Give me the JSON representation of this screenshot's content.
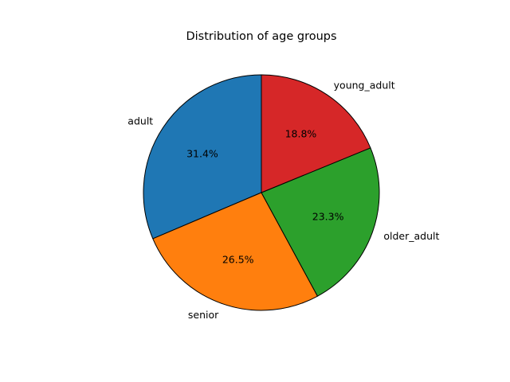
{
  "chart_data": {
    "type": "pie",
    "title": "Distribution of age groups",
    "start_angle_deg": 90,
    "direction": "counterclockwise",
    "edge_color": "#000000",
    "slices": [
      {
        "label": "adult",
        "value": 31.4,
        "pct_text": "31.4%",
        "color": "#1f77b4"
      },
      {
        "label": "senior",
        "value": 26.5,
        "pct_text": "26.5%",
        "color": "#ff7f0e"
      },
      {
        "label": "older_adult",
        "value": 23.3,
        "pct_text": "23.3%",
        "color": "#2ca02c"
      },
      {
        "label": "young_adult",
        "value": 18.8,
        "pct_text": "18.8%",
        "color": "#d62728"
      }
    ]
  }
}
